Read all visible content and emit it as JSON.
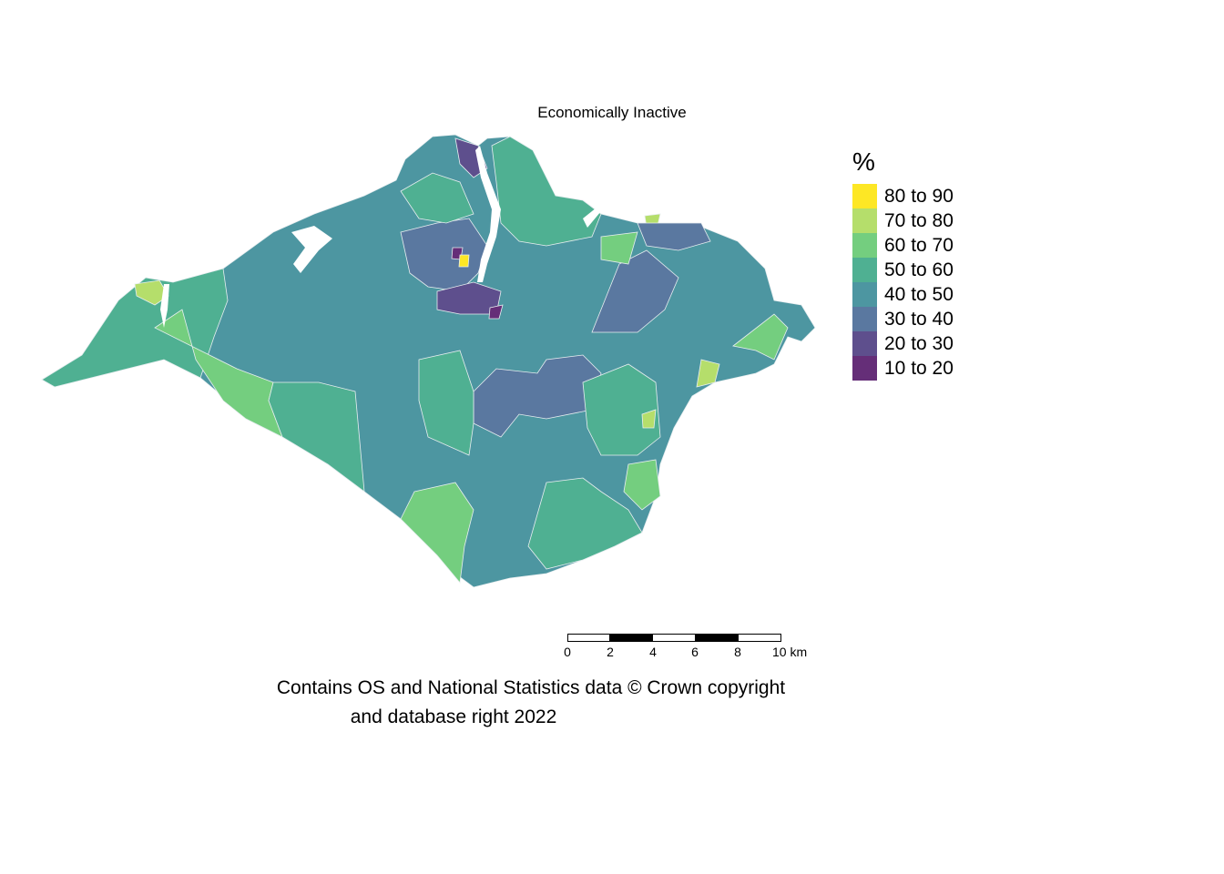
{
  "title": "Economically Inactive",
  "legend": {
    "title": "%",
    "items": [
      {
        "label": "80 to 90",
        "color": "#fde725"
      },
      {
        "label": "70 to 80",
        "color": "#b5de6b"
      },
      {
        "label": "60 to 70",
        "color": "#74ce7f"
      },
      {
        "label": "50 to 60",
        "color": "#4fb092"
      },
      {
        "label": "40 to 50",
        "color": "#4d96a1"
      },
      {
        "label": "30 to 40",
        "color": "#5a78a0"
      },
      {
        "label": "20 to 30",
        "color": "#5e4f8d"
      },
      {
        "label": "10 to 20",
        "color": "#652e78"
      }
    ]
  },
  "scalebar": {
    "ticks": [
      "0",
      "2",
      "4",
      "6",
      "8",
      "10 km"
    ]
  },
  "attribution": {
    "line1": "Contains OS and National Statistics data © Crown copyright",
    "line2": "and database right 2022"
  }
}
